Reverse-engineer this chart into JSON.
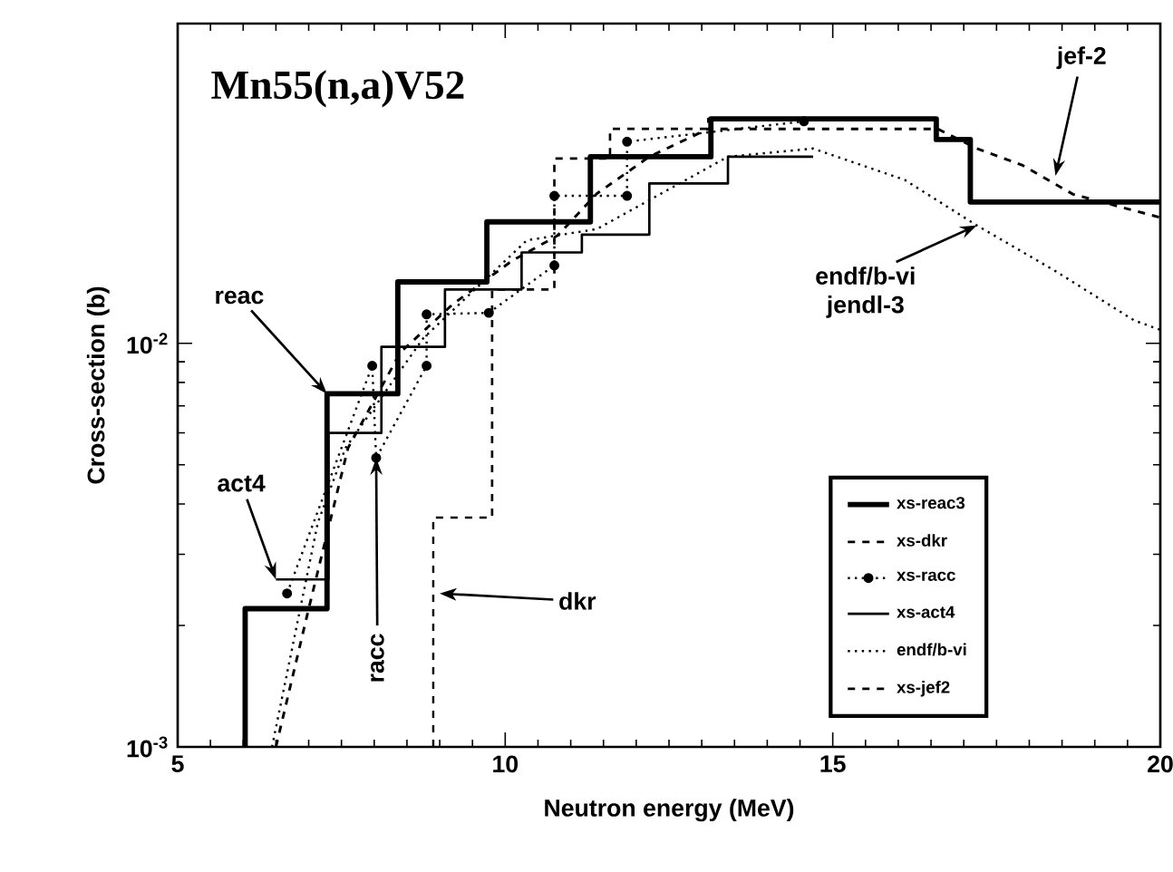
{
  "chart_data": {
    "type": "step",
    "title": "Mn55(n,a)V52",
    "xlabel": "Neutron energy (MeV)",
    "ylabel": "Cross-section (b)",
    "xlim": [
      5,
      20
    ],
    "ylim": [
      0.001,
      0.062
    ],
    "log": "y",
    "xticks": [
      5,
      10,
      15,
      20
    ],
    "yticks": [
      {
        "value": 0.001,
        "label": "10$^{-3}$"
      },
      {
        "value": 0.01,
        "label": "10$^{-2}$"
      }
    ],
    "legend": "bottom right",
    "series": [
      {
        "name": "xs-reac3",
        "type": "step",
        "color": "#000000",
        "line_style": "solid",
        "x": [
          6.03,
          6.03,
          7.28,
          8.36,
          9.72,
          11.3,
          13.14,
          16.58,
          17.1,
          20
        ],
        "values": [
          0.001,
          0.0022,
          0.0075,
          0.0142,
          0.02,
          0.029,
          0.036,
          0.032,
          0.0224,
          0.0224
        ]
      },
      {
        "name": "xs-dkr",
        "type": "step",
        "color": "#000000",
        "line_style": "dashed",
        "x": [
          8.9,
          8.9,
          9.8,
          10.75,
          11.6,
          13.1,
          16.58
        ],
        "values": [
          0.001,
          0.0037,
          0.0136,
          0.0287,
          0.034,
          0.036,
          0.036
        ]
      },
      {
        "name": "xs-racc",
        "type": "line",
        "color": "#000000",
        "line_style": "dotted",
        "marker": "circle",
        "x": [
          6.67,
          7.97,
          8.03,
          8.8,
          8.8,
          9.75,
          10.75,
          10.75,
          11.86,
          11.86,
          14.56
        ],
        "values": [
          0.0024,
          0.0088,
          0.0052,
          0.0088,
          0.0118,
          0.0119,
          0.0156,
          0.0232,
          0.0232,
          0.0316,
          0.0355
        ]
      },
      {
        "name": "xs-act4",
        "type": "step",
        "color": "#000000",
        "line_style": "solid",
        "x": [
          6.5,
          7.3,
          8.11,
          9.08,
          10.25,
          11.17,
          12.2,
          13.4,
          14.7
        ],
        "values": [
          0.0026,
          0.006,
          0.0098,
          0.0136,
          0.0168,
          0.0186,
          0.0249,
          0.029,
          0.029
        ]
      },
      {
        "name": "endf/b-vi",
        "type": "line",
        "color": "#000000",
        "line_style": "dotted",
        "x": [
          6.44,
          7.14,
          7.56,
          8.75,
          10.33,
          11.4,
          13.4,
          14.7,
          16.1,
          17.2,
          18.4,
          19.6,
          20
        ],
        "values": [
          0.001,
          0.0036,
          0.0055,
          0.0103,
          0.018,
          0.0192,
          0.029,
          0.0304,
          0.0254,
          0.0196,
          0.0151,
          0.0114,
          0.0108
        ]
      },
      {
        "name": "xs-jef2",
        "type": "line",
        "color": "#000000",
        "line_style": "dashed",
        "x": [
          6.5,
          7.0,
          7.6,
          8.4,
          9.2,
          10.1,
          10.8,
          11.4,
          12.2,
          13.1,
          16.6,
          17.2,
          17.9,
          18.67,
          19.2,
          20
        ],
        "values": [
          0.001,
          0.0022,
          0.0055,
          0.0095,
          0.0125,
          0.016,
          0.0185,
          0.0235,
          0.029,
          0.034,
          0.034,
          0.0304,
          0.0276,
          0.0234,
          0.0222,
          0.0205
        ]
      }
    ],
    "annotations": [
      {
        "text": "reac",
        "x": 7.28,
        "y": 0.0075
      },
      {
        "text": "act4",
        "x": 6.5,
        "y": 0.0026
      },
      {
        "text": "racc",
        "x": 8.03,
        "y": 0.0052
      },
      "dkr",
      {
        "text": "endf/b-vi",
        "x": 17.2,
        "y": 0.0196
      },
      "jendl-3",
      {
        "text": "jef-2",
        "x": 18.4,
        "y": 0.026
      }
    ]
  }
}
